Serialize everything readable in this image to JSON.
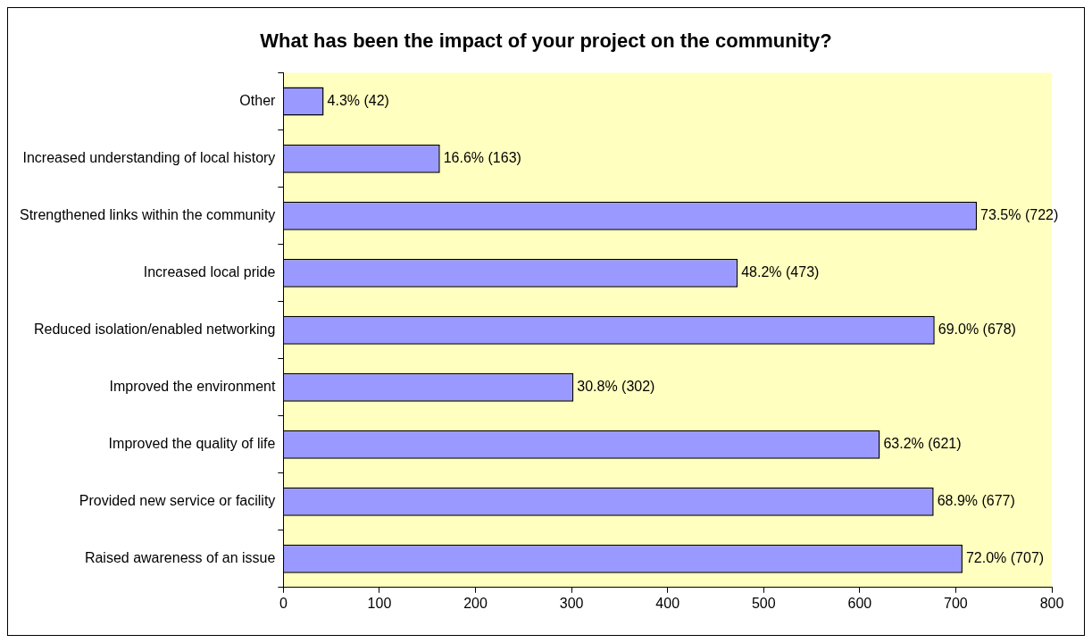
{
  "chart_data": {
    "type": "bar",
    "orientation": "horizontal",
    "title": "What has been the impact of your project on the community?",
    "categories": [
      "Other",
      "Increased understanding of local history",
      "Strengthened links within the community",
      "Increased local pride",
      "Reduced isolation/enabled networking",
      "Improved the environment",
      "Improved the quality of life",
      "Provided new service or facility",
      "Raised awareness of an issue"
    ],
    "values": [
      42,
      163,
      722,
      473,
      678,
      302,
      621,
      677,
      707
    ],
    "value_labels": [
      "4.3% (42)",
      "16.6% (163)",
      "73.5% (722)",
      "48.2% (473)",
      "69.0% (678)",
      "30.8% (302)",
      "63.2% (621)",
      "68.9% (677)",
      "72.0% (707)"
    ],
    "color": "#9999ff",
    "xlim": [
      0,
      800
    ],
    "xticks": [
      0,
      100,
      200,
      300,
      400,
      500,
      600,
      700,
      800
    ],
    "grid": false,
    "legend": false
  }
}
